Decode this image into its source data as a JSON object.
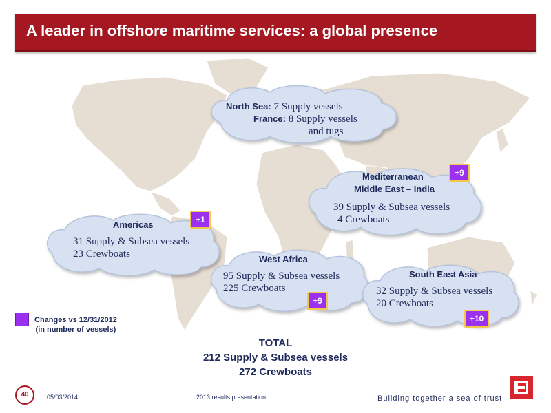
{
  "slide": {
    "title": "A leader in offshore maritime services: a global presence"
  },
  "regions": {
    "north_sea": {
      "line1_label": "North Sea:",
      "line1_value": "7 Supply vessels",
      "line2_label": "France:",
      "line2_value": "8 Supply vessels",
      "line3": "and tugs"
    },
    "mediterranean": {
      "title1": "Mediterranean",
      "title2": "Middle East – India",
      "line1": "39 Supply & Subsea vessels",
      "line2": "4 Crewboats",
      "change": "+9"
    },
    "americas": {
      "title": "Americas",
      "line1": "31 Supply & Subsea vessels",
      "line2": "23 Crewboats",
      "change": "+1"
    },
    "west_africa": {
      "title": "West Africa",
      "line1": "95 Supply & Subsea vessels",
      "line2": "225 Crewboats",
      "change": "+9"
    },
    "south_east_asia": {
      "title": "South East Asia",
      "line1": "32 Supply & Subsea vessels",
      "line2": "20 Crewboats",
      "change": "+10"
    }
  },
  "legend": {
    "line1": "Changes vs 12/31/2012",
    "line2": "(in number of vessels)"
  },
  "total": {
    "label": "TOTAL",
    "line1": "212 Supply & Subsea vessels",
    "line2": "272 Crewboats"
  },
  "footer": {
    "page_number": "40",
    "date": "05/03/2014",
    "center": "2013 results presentation",
    "tagline": "Building together a sea of trust"
  },
  "colors": {
    "title_bar": "#a51822",
    "badge": "#9b30f0",
    "map_land": "#e6ddd3",
    "cloud_fill": "#d7e1f1",
    "text_navy": "#1f2a5a"
  }
}
